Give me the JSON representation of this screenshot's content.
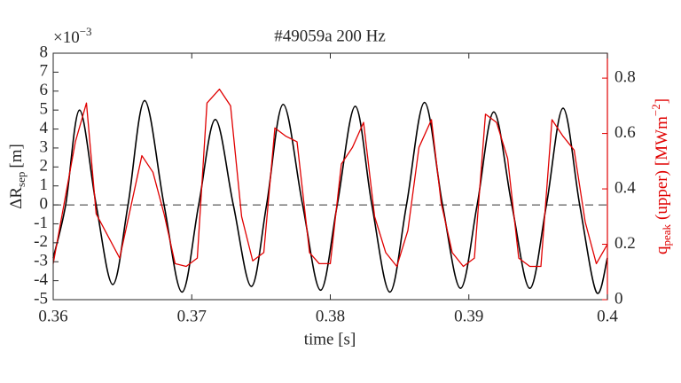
{
  "chart_data": {
    "type": "line",
    "title": "#49059a 200 Hz",
    "x_label": "time [s]",
    "y_label": {
      "main": "ΔR",
      "sub": "sep",
      "unit": "[m]"
    },
    "y2_label": {
      "main": "q",
      "sub": "peak",
      "mid": "(upper)",
      "unit": "[MWm",
      "exp": "−2",
      "close": "]"
    },
    "y_multiplier": {
      "base": "×10",
      "exp": "−3"
    },
    "xlim": [
      0.36,
      0.4
    ],
    "xticks": [
      0.36,
      0.37,
      0.38,
      0.39,
      0.4
    ],
    "ylim": [
      -5,
      8
    ],
    "yticks": [
      -5,
      -4,
      -3,
      -2,
      -1,
      0,
      1,
      2,
      3,
      4,
      5,
      6,
      7,
      8
    ],
    "y2lim": [
      0,
      0.89
    ],
    "y2ticks": [
      0,
      0.2,
      0.4,
      0.6,
      0.8
    ],
    "hline": 0,
    "series": [
      {
        "name": "ΔRsep",
        "color": "#000000",
        "smooth": true,
        "x": [
          0.36,
          0.3609,
          0.3619,
          0.3631,
          0.3643,
          0.3654,
          0.3666,
          0.368,
          0.3693,
          0.3705,
          0.3717,
          0.373,
          0.3743,
          0.3754,
          0.3766,
          0.378,
          0.3793,
          0.3805,
          0.3818,
          0.383,
          0.3843,
          0.3855,
          0.3868,
          0.3881,
          0.3894,
          0.3906,
          0.3918,
          0.3931,
          0.3944,
          0.3956,
          0.3968,
          0.398,
          0.3992,
          0.4
        ],
        "values": [
          -2.8,
          0,
          5.0,
          0,
          -4.2,
          0,
          5.5,
          0,
          -4.6,
          0,
          4.5,
          0,
          -4.3,
          0,
          5.3,
          0,
          -4.5,
          0,
          5.2,
          0,
          -4.6,
          0,
          5.4,
          0,
          -4.4,
          0,
          4.9,
          0,
          -4.4,
          0,
          5.1,
          0,
          -4.6,
          -2.8
        ]
      },
      {
        "name": "qpeak (upper)",
        "color": "#e00000",
        "axis": "y2",
        "x": [
          0.36,
          0.3616,
          0.3624,
          0.3631,
          0.3648,
          0.3664,
          0.3672,
          0.368,
          0.3688,
          0.3696,
          0.3704,
          0.3711,
          0.372,
          0.3728,
          0.3736,
          0.3744,
          0.3752,
          0.376,
          0.3768,
          0.3776,
          0.3785,
          0.3792,
          0.38,
          0.3808,
          0.3816,
          0.3824,
          0.3832,
          0.384,
          0.3848,
          0.3856,
          0.3864,
          0.3873,
          0.388,
          0.3888,
          0.3896,
          0.3904,
          0.3912,
          0.392,
          0.3928,
          0.3936,
          0.3944,
          0.3952,
          0.396,
          0.3968,
          0.3976,
          0.3984,
          0.3992,
          0.4
        ],
        "values": [
          0.13,
          0.57,
          0.71,
          0.31,
          0.15,
          0.52,
          0.46,
          0.31,
          0.13,
          0.12,
          0.15,
          0.71,
          0.76,
          0.7,
          0.3,
          0.14,
          0.17,
          0.62,
          0.59,
          0.57,
          0.17,
          0.13,
          0.13,
          0.49,
          0.55,
          0.64,
          0.3,
          0.17,
          0.12,
          0.25,
          0.55,
          0.65,
          0.35,
          0.17,
          0.12,
          0.15,
          0.67,
          0.64,
          0.51,
          0.15,
          0.12,
          0.12,
          0.65,
          0.59,
          0.54,
          0.28,
          0.13,
          0.2
        ]
      }
    ]
  }
}
